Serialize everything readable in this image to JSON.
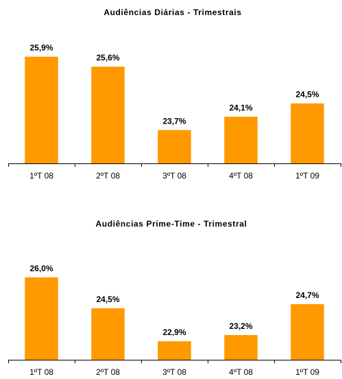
{
  "chart_data": [
    {
      "type": "bar",
      "title": "Audiências Diárias - Trimestrais",
      "categories": [
        "1ºT 08",
        "2ºT 08",
        "3ºT 08",
        "4ºT 08",
        "1ºT 09"
      ],
      "values": [
        25.9,
        25.6,
        23.7,
        24.1,
        24.5
      ],
      "data_labels": [
        "25,9%",
        "25,6%",
        "23,7%",
        "24,1%",
        "24,5%"
      ],
      "xlabel": "",
      "ylabel": "",
      "ylim": [
        22.7,
        26.2
      ],
      "grid": false,
      "legend": "none",
      "bar_color": "#FF9900"
    },
    {
      "type": "bar",
      "title": "Audiências Prime-Time - Trimestral",
      "categories": [
        "1ºT 08",
        "2ºT 08",
        "3ºT 08",
        "4ºT 08",
        "1ºT 09"
      ],
      "values": [
        26.0,
        24.5,
        22.9,
        23.2,
        24.7
      ],
      "data_labels": [
        "26,0%",
        "24,5%",
        "22,9%",
        "23,2%",
        "24,7%"
      ],
      "xlabel": "",
      "ylabel": "",
      "ylim": [
        22.0,
        27.0
      ],
      "grid": false,
      "legend": "none",
      "bar_color": "#FF9900"
    }
  ]
}
